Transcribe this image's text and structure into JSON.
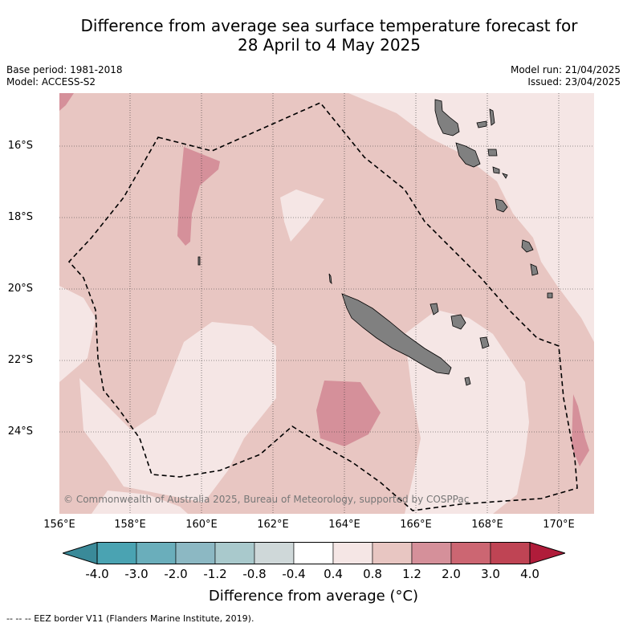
{
  "title": {
    "line1": "Difference from average sea surface temperature forecast for",
    "line2": "28 April to 4 May 2025"
  },
  "meta_left": {
    "base_period": "Base period: 1981-2018",
    "model": "Model: ACCESS-S2"
  },
  "meta_right": {
    "model_run": "Model run: 21/04/2025",
    "issued": "Issued: 23/04/2025"
  },
  "map": {
    "lat_labels": [
      "16°S",
      "18°S",
      "20°S",
      "22°S",
      "24°S"
    ],
    "lon_labels": [
      "156°E",
      "158°E",
      "160°E",
      "162°E",
      "164°E",
      "166°E",
      "168°E",
      "170°E"
    ],
    "copyright": "© Commonwealth of Australia 2025, Bureau of Meteorology, supported by COSPPac"
  },
  "colorbar": {
    "ticks": [
      "-4.0",
      "-3.0",
      "-2.0",
      "-1.2",
      "-0.8",
      "-0.4",
      "0.4",
      "0.8",
      "1.2",
      "2.0",
      "3.0",
      "4.0"
    ],
    "colors": [
      "#3a8a99",
      "#4aa3b2",
      "#6aaebb",
      "#8cb8c3",
      "#a9c9cc",
      "#cfd8d9",
      "#ffffff",
      "#f5e6e5",
      "#e8c6c2",
      "#d5909a",
      "#cc6672",
      "#bf4454",
      "#b01c3a"
    ],
    "label": "Difference from average (°C)"
  },
  "footer": {
    "eez": "--  --  -- EEZ border V11 (Flanders Marine Institute, 2019)."
  },
  "palette": {
    "land": "#808080",
    "light": "#f5e6e5",
    "mid": "#e8c6c2",
    "warm": "#d5909a"
  }
}
